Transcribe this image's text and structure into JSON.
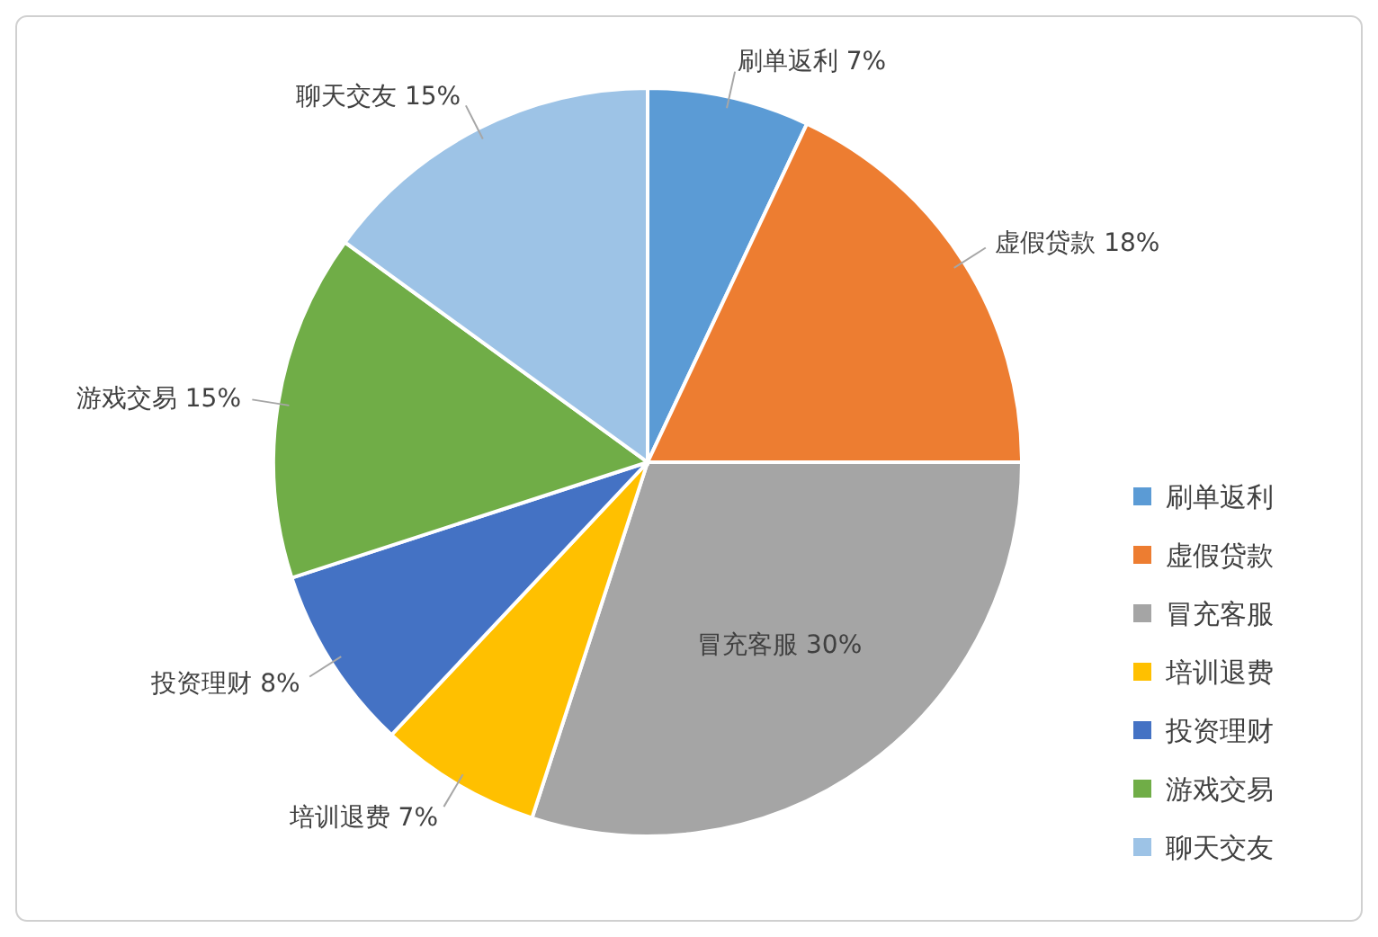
{
  "chart_data": {
    "type": "pie",
    "categories": [
      "刷单返利",
      "虚假贷款",
      "冒充客服",
      "培训退费",
      "投资理财",
      "游戏交易",
      "聊天交友"
    ],
    "values": [
      7,
      18,
      30,
      7,
      8,
      15,
      15
    ],
    "colors": [
      "#5b9bd5",
      "#ed7d31",
      "#a5a5a5",
      "#ffc000",
      "#4472c4",
      "#70ad47",
      "#9dc3e6"
    ],
    "value_labels": [
      "7%",
      "18%",
      "30%",
      "7%",
      "8%",
      "15%",
      "15%"
    ],
    "legend": "right"
  }
}
